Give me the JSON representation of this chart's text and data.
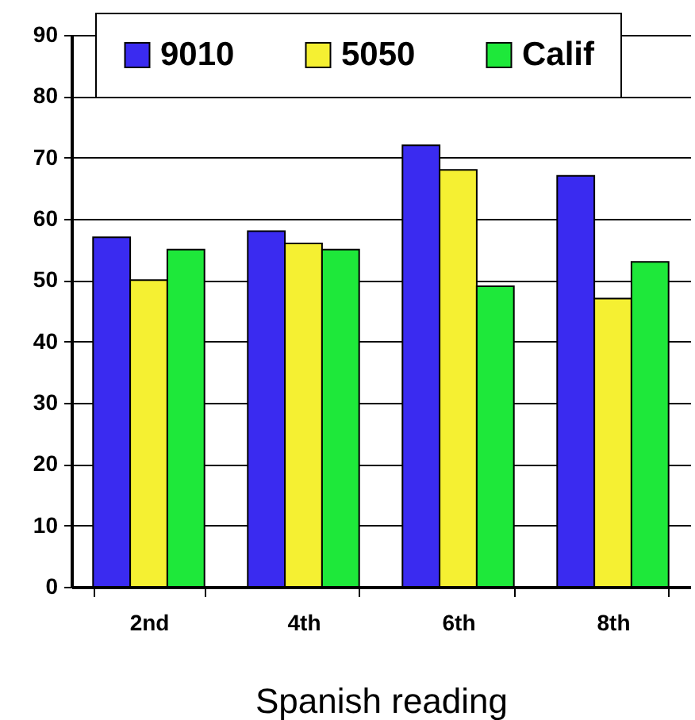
{
  "chart_data": {
    "type": "bar",
    "xlabel": "Spanish reading",
    "categories": [
      "2nd",
      "4th",
      "6th",
      "8th"
    ],
    "series": [
      {
        "name": "9010",
        "color": "#3a2bf0",
        "values": [
          57,
          58,
          72,
          67
        ]
      },
      {
        "name": "5050",
        "color": "#f5f032",
        "values": [
          50,
          56,
          68,
          47
        ]
      },
      {
        "name": "Calif",
        "color": "#1ee83a",
        "values": [
          55,
          55,
          49,
          53
        ]
      }
    ],
    "ylim": [
      0,
      90
    ],
    "yticks": [
      0,
      10,
      20,
      30,
      40,
      50,
      60,
      70,
      80,
      90
    ],
    "grid": "y",
    "legend": "top"
  }
}
